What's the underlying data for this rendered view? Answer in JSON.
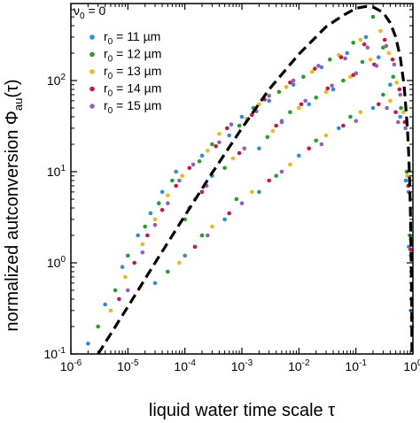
{
  "chart_data": {
    "type": "scatter",
    "title": "",
    "corner_label": {
      "symbol": "ν",
      "sub": "0",
      "rest": " = 0"
    },
    "xlabel": "liquid water time scale τ",
    "ylabel": {
      "main": "normalized autconversion Φ",
      "sub": "au",
      "rest": "(τ)"
    },
    "x_scale": "log",
    "y_scale": "log",
    "xlim": [
      1e-06,
      1
    ],
    "ylim": [
      0.1,
      700
    ],
    "x_ticks": [
      {
        "value": 1e-06,
        "base": "10",
        "exp": "-6"
      },
      {
        "value": 1e-05,
        "base": "10",
        "exp": "-5"
      },
      {
        "value": 0.0001,
        "base": "10",
        "exp": "-4"
      },
      {
        "value": 0.001,
        "base": "10",
        "exp": "-3"
      },
      {
        "value": 0.01,
        "base": "10",
        "exp": "-2"
      },
      {
        "value": 0.1,
        "base": "10",
        "exp": "-1"
      },
      {
        "value": 1,
        "base": "10",
        "exp": "0"
      }
    ],
    "y_ticks": [
      {
        "value": 0.1,
        "base": "10",
        "exp": "-1"
      },
      {
        "value": 1,
        "base": "10",
        "exp": "0"
      },
      {
        "value": 10,
        "base": "10",
        "exp": "1"
      },
      {
        "value": 100,
        "base": "10",
        "exp": "2"
      }
    ],
    "grid": false,
    "legend_position": "top-left",
    "series": [
      {
        "name": "r0 = 11 µm",
        "label_main": "r",
        "label_sub": "0",
        "label_rest": " = 11 µm",
        "color": "#2b8de0",
        "points": [
          [
            2e-06,
            0.13
          ],
          [
            4e-06,
            0.35
          ],
          [
            8e-06,
            0.9
          ],
          [
            1.5e-05,
            2
          ],
          [
            2.5e-05,
            3.5
          ],
          [
            4e-05,
            6
          ],
          [
            7e-05,
            10
          ],
          [
            0.00012,
            4
          ],
          [
            0.0002,
            15
          ],
          [
            0.0003,
            9
          ],
          [
            0.0006,
            25
          ],
          [
            0.001,
            40
          ],
          [
            0.002,
            18
          ],
          [
            0.003,
            60
          ],
          [
            0.005,
            35
          ],
          [
            0.008,
            90
          ],
          [
            0.015,
            55
          ],
          [
            0.025,
            140
          ],
          [
            0.04,
            80
          ],
          [
            0.07,
            200
          ],
          [
            0.1,
            120
          ],
          [
            0.15,
            300
          ],
          [
            0.25,
            180
          ],
          [
            0.4,
            90
          ],
          [
            0.6,
            40
          ],
          [
            0.75,
            8
          ],
          [
            0.85,
            1.5
          ],
          [
            0.92,
            0.3
          ],
          [
            3e-05,
            0.6
          ],
          [
            0.0001,
            1.2
          ],
          [
            0.0005,
            3
          ],
          [
            0.002,
            6
          ],
          [
            0.01,
            15
          ],
          [
            0.05,
            30
          ],
          [
            0.2,
            50
          ]
        ]
      },
      {
        "name": "r0 = 12 µm",
        "label_main": "r",
        "label_sub": "0",
        "label_rest": " = 12 µm",
        "color": "#1fa12a",
        "points": [
          [
            3e-06,
            0.2
          ],
          [
            6e-06,
            0.5
          ],
          [
            1e-05,
            1.2
          ],
          [
            2e-05,
            2.5
          ],
          [
            3.5e-05,
            4.5
          ],
          [
            6e-05,
            8
          ],
          [
            0.0001,
            3
          ],
          [
            0.00018,
            13
          ],
          [
            0.0003,
            20
          ],
          [
            0.0005,
            11
          ],
          [
            0.0009,
            32
          ],
          [
            0.0016,
            50
          ],
          [
            0.0028,
            24
          ],
          [
            0.0045,
            75
          ],
          [
            0.007,
            45
          ],
          [
            0.012,
            110
          ],
          [
            0.02,
            65
          ],
          [
            0.035,
            170
          ],
          [
            0.06,
            100
          ],
          [
            0.09,
            260
          ],
          [
            0.13,
            160
          ],
          [
            0.2,
            500
          ],
          [
            0.3,
            230
          ],
          [
            0.45,
            110
          ],
          [
            0.62,
            50
          ],
          [
            0.78,
            10
          ],
          [
            0.88,
            2
          ],
          [
            0.94,
            0.4
          ],
          [
            5e-05,
            0.8
          ],
          [
            0.0002,
            2
          ],
          [
            0.0008,
            5
          ],
          [
            0.004,
            9
          ],
          [
            0.02,
            22
          ],
          [
            0.08,
            40
          ],
          [
            0.3,
            70
          ]
        ]
      },
      {
        "name": "r0 = 13 µm",
        "label_main": "r",
        "label_sub": "0",
        "label_rest": " = 13 µm",
        "color": "#f2b51a",
        "points": [
          [
            5e-06,
            0.3
          ],
          [
            9e-06,
            0.7
          ],
          [
            1.8e-05,
            1.6
          ],
          [
            3e-05,
            3
          ],
          [
            5e-05,
            5.5
          ],
          [
            9e-05,
            9
          ],
          [
            0.00015,
            5
          ],
          [
            0.00025,
            17
          ],
          [
            0.0004,
            26
          ],
          [
            0.0007,
            14
          ],
          [
            0.0012,
            38
          ],
          [
            0.002,
            55
          ],
          [
            0.0035,
            28
          ],
          [
            0.006,
            85
          ],
          [
            0.01,
            50
          ],
          [
            0.017,
            125
          ],
          [
            0.03,
            75
          ],
          [
            0.05,
            190
          ],
          [
            0.08,
            110
          ],
          [
            0.12,
            280
          ],
          [
            0.18,
            170
          ],
          [
            0.27,
            350
          ],
          [
            0.38,
            200
          ],
          [
            0.52,
            95
          ],
          [
            0.68,
            45
          ],
          [
            0.8,
            9
          ],
          [
            0.9,
            1.8
          ],
          [
            0.95,
            0.35
          ],
          [
            8e-05,
            1
          ],
          [
            0.0003,
            2.5
          ],
          [
            0.0015,
            6
          ],
          [
            0.007,
            12
          ],
          [
            0.03,
            25
          ],
          [
            0.12,
            45
          ],
          [
            0.4,
            60
          ]
        ]
      },
      {
        "name": "r0 = 14 µm",
        "label_main": "r",
        "label_sub": "0",
        "label_rest": " = 14 µm",
        "color": "#c7183f",
        "points": [
          [
            7e-06,
            0.4
          ],
          [
            1.3e-05,
            1
          ],
          [
            2.2e-05,
            2
          ],
          [
            4e-05,
            3.8
          ],
          [
            7e-05,
            7
          ],
          [
            0.00012,
            11
          ],
          [
            0.0002,
            6
          ],
          [
            0.00035,
            19
          ],
          [
            0.00055,
            30
          ],
          [
            0.0009,
            16
          ],
          [
            0.0015,
            42
          ],
          [
            0.0025,
            62
          ],
          [
            0.004,
            32
          ],
          [
            0.007,
            95
          ],
          [
            0.011,
            55
          ],
          [
            0.019,
            135
          ],
          [
            0.032,
            82
          ],
          [
            0.055,
            180
          ],
          [
            0.09,
            115
          ],
          [
            0.14,
            250
          ],
          [
            0.21,
            150
          ],
          [
            0.32,
            280
          ],
          [
            0.44,
            170
          ],
          [
            0.58,
            80
          ],
          [
            0.72,
            35
          ],
          [
            0.83,
            7
          ],
          [
            0.91,
            1.4
          ],
          [
            0.96,
            0.25
          ],
          [
            0.00015,
            1.5
          ],
          [
            0.0006,
            3.5
          ],
          [
            0.003,
            8
          ],
          [
            0.015,
            18
          ],
          [
            0.06,
            32
          ],
          [
            0.25,
            55
          ],
          [
            0.5,
            45
          ]
        ]
      },
      {
        "name": "r0 = 15 µm",
        "label_main": "r",
        "label_sub": "0",
        "label_rest": " = 15 µm",
        "color": "#8f5fc4",
        "points": [
          [
            1e-05,
            0.5
          ],
          [
            1.8e-05,
            1.3
          ],
          [
            3e-05,
            2.6
          ],
          [
            5e-05,
            4.5
          ],
          [
            8e-05,
            8
          ],
          [
            0.00014,
            12
          ],
          [
            0.00024,
            7
          ],
          [
            0.0004,
            21
          ],
          [
            0.00065,
            33
          ],
          [
            0.0011,
            18
          ],
          [
            0.0018,
            46
          ],
          [
            0.003,
            68
          ],
          [
            0.005,
            36
          ],
          [
            0.008,
            100
          ],
          [
            0.013,
            60
          ],
          [
            0.022,
            145
          ],
          [
            0.038,
            88
          ],
          [
            0.065,
            175
          ],
          [
            0.1,
            120
          ],
          [
            0.16,
            230
          ],
          [
            0.23,
            145
          ],
          [
            0.34,
            240
          ],
          [
            0.47,
            150
          ],
          [
            0.6,
            70
          ],
          [
            0.74,
            30
          ],
          [
            0.84,
            6
          ],
          [
            0.92,
            1.2
          ],
          [
            0.97,
            0.2
          ],
          [
            0.00025,
            2
          ],
          [
            0.001,
            4.5
          ],
          [
            0.005,
            10
          ],
          [
            0.025,
            20
          ],
          [
            0.1,
            36
          ],
          [
            0.35,
            50
          ],
          [
            0.55,
            35
          ]
        ]
      }
    ],
    "fit_curve": {
      "style": "dashed",
      "color": "#000000",
      "points": [
        [
          3e-06,
          0.1
        ],
        [
          1e-05,
          0.33
        ],
        [
          3e-05,
          1
        ],
        [
          0.0001,
          3.3
        ],
        [
          0.0003,
          9.7
        ],
        [
          0.001,
          30
        ],
        [
          0.003,
          80
        ],
        [
          0.01,
          195
        ],
        [
          0.03,
          390
        ],
        [
          0.06,
          520
        ],
        [
          0.1,
          620
        ],
        [
          0.15,
          650
        ],
        [
          0.2,
          640
        ],
        [
          0.3,
          560
        ],
        [
          0.4,
          430
        ],
        [
          0.5,
          300
        ],
        [
          0.6,
          180
        ],
        [
          0.7,
          90
        ],
        [
          0.8,
          30
        ],
        [
          0.85,
          14
        ],
        [
          0.9,
          4
        ],
        [
          0.93,
          1.2
        ],
        [
          0.95,
          0.4
        ],
        [
          0.96,
          0.1
        ]
      ]
    }
  }
}
